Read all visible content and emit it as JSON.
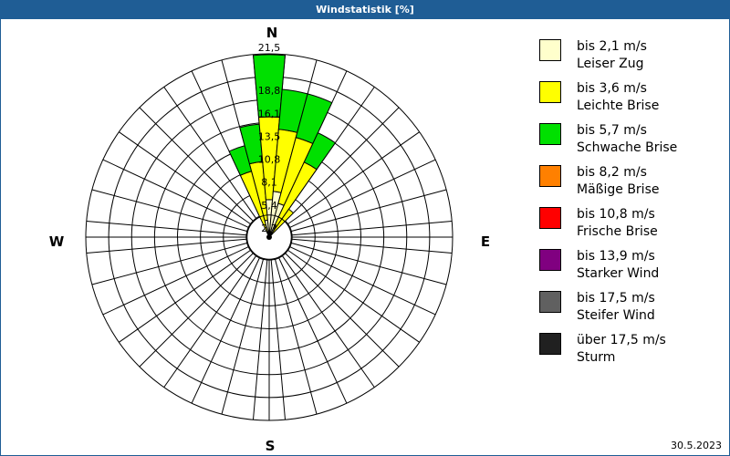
{
  "window": {
    "title": "Windstatistik [%]"
  },
  "compass": {
    "n": "N",
    "e": "E",
    "s": "S",
    "w": "W"
  },
  "legend": {
    "items": [
      {
        "line1": "bis 2,1 m/s",
        "line2": "Leiser Zug",
        "color": "#ffffcc"
      },
      {
        "line1": "bis 3,6 m/s",
        "line2": "Leichte Brise",
        "color": "#ffff00"
      },
      {
        "line1": "bis 5,7 m/s",
        "line2": "Schwache Brise",
        "color": "#00e000"
      },
      {
        "line1": "bis 8,2 m/s",
        "line2": "Mäßige Brise",
        "color": "#ff8000"
      },
      {
        "line1": "bis 10,8 m/s",
        "line2": "Frische Brise",
        "color": "#ff0000"
      },
      {
        "line1": "bis 13,9 m/s",
        "line2": "Starker Wind",
        "color": "#800080"
      },
      {
        "line1": "bis 17,5 m/s",
        "line2": "Steifer Wind",
        "color": "#606060"
      },
      {
        "line1": "über 17,5 m/s",
        "line2": "Sturm",
        "color": "#202020"
      }
    ]
  },
  "footer": {
    "date": "30.5.2023"
  },
  "chart_data": {
    "type": "wind-rose",
    "title": "Windstatistik [%]",
    "unit": "%",
    "directions_deg_step": 10,
    "radial_ticks": [
      "2,7",
      "5,4",
      "8,1",
      "10,8",
      "13,5",
      "16,1",
      "18,8",
      "21,5"
    ],
    "radial_max": 21.5,
    "compass_labels": [
      "N",
      "E",
      "S",
      "W"
    ],
    "series_names": [
      "bis 2,1 m/s",
      "bis 3,6 m/s",
      "bis 5,7 m/s",
      "bis 8,2 m/s",
      "bis 10,8 m/s",
      "bis 13,9 m/s",
      "bis 17,5 m/s",
      "über 17,5 m/s"
    ],
    "series_colors": [
      "#ffffcc",
      "#ffff00",
      "#00e000",
      "#ff8000",
      "#ff0000",
      "#800080",
      "#606060",
      "#202020"
    ],
    "sectors": [
      {
        "dir": 340,
        "cumulative": [
          0.6,
          8.0,
          11.1
        ]
      },
      {
        "dir": 350,
        "cumulative": [
          2.0,
          8.9,
          13.3
        ]
      },
      {
        "dir": 0,
        "cumulative": [
          4.4,
          14.1,
          21.4
        ]
      },
      {
        "dir": 10,
        "cumulative": [
          5.4,
          12.7,
          17.4
        ]
      },
      {
        "dir": 20,
        "cumulative": [
          4.1,
          12.1,
          17.4
        ]
      },
      {
        "dir": 30,
        "cumulative": [
          1.5,
          9.7,
          13.5
        ]
      },
      {
        "dir": 40,
        "cumulative": [
          0.5,
          4.0,
          4.0
        ]
      }
    ]
  }
}
